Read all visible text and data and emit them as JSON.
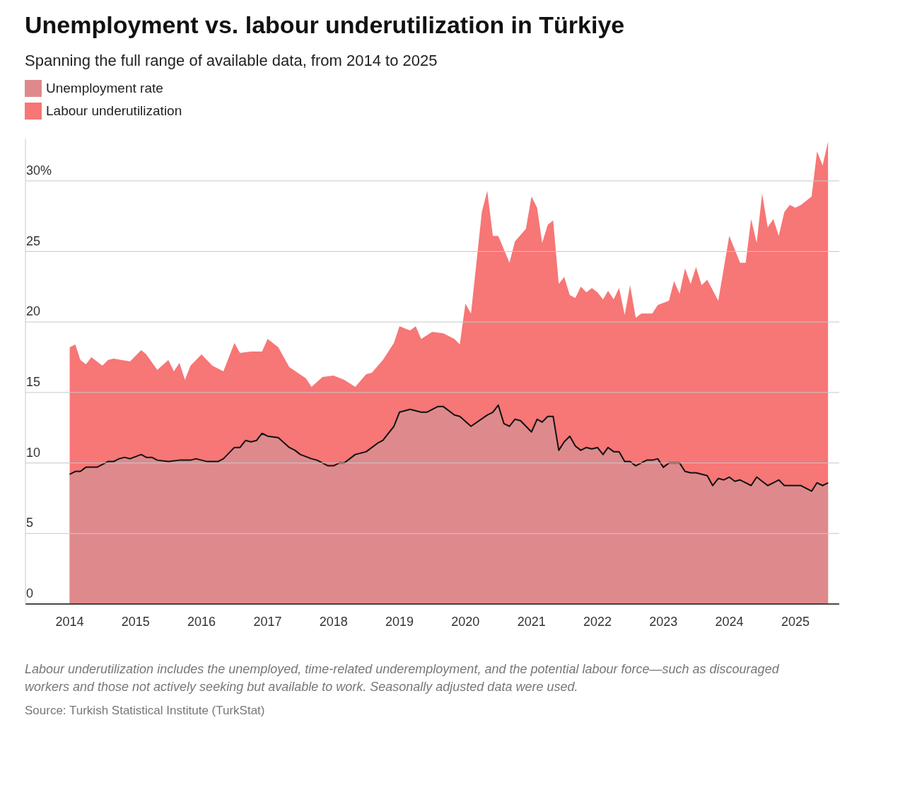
{
  "chart_data": {
    "type": "area",
    "title": "Unemployment vs. labour underutilization in Türkiye",
    "subtitle": "Spanning the full range of available data, from 2014 to 2025",
    "annotations": [
      "Labour underutilization includes the unemployed, time-related underemployment, and the potential labour force—such as discouraged workers and those not actively seeking but available to work. Seasonally adjusted data were used.",
      "Source: Turkish Statistical Institute (TurkStat)"
    ],
    "legend": "top left",
    "grid": "y",
    "xlim": [
      "2013-05",
      "2025-09"
    ],
    "xticks": [
      "2014",
      "2015",
      "2016",
      "2017",
      "2018",
      "2019",
      "2020",
      "2021",
      "2022",
      "2023",
      "2024",
      "2025"
    ],
    "ylim": [
      0,
      33
    ],
    "yticks": [
      0,
      5,
      10,
      15,
      20,
      25,
      {
        "value": 30,
        "label": "30%"
      }
    ],
    "series": [
      {
        "name": "Unemployment rate",
        "color": "#de8a8c",
        "x": [
          "2014-01",
          "2014-02",
          "2014-03",
          "2014-04",
          "2014-06",
          "2014-08",
          "2014-09",
          "2014-10",
          "2014-11",
          "2014-12",
          "2015-02",
          "2015-03",
          "2015-04",
          "2015-05",
          "2015-07",
          "2015-09",
          "2015-11",
          "2015-12",
          "2016-02",
          "2016-03",
          "2016-04",
          "2016-05",
          "2016-07",
          "2016-08",
          "2016-09",
          "2016-10",
          "2016-11",
          "2016-12",
          "2017-01",
          "2017-03",
          "2017-05",
          "2017-06",
          "2017-07",
          "2017-09",
          "2017-10",
          "2017-11",
          "2017-12",
          "2018-01",
          "2018-02",
          "2018-03",
          "2018-05",
          "2018-07",
          "2018-09",
          "2018-10",
          "2018-12",
          "2019-01",
          "2019-03",
          "2019-05",
          "2019-06",
          "2019-08",
          "2019-09",
          "2019-11",
          "2019-12",
          "2020-02",
          "2020-05",
          "2020-06",
          "2020-07",
          "2020-08",
          "2020-09",
          "2020-10",
          "2020-11",
          "2021-01",
          "2021-02",
          "2021-03",
          "2021-04",
          "2021-05",
          "2021-06",
          "2021-07",
          "2021-08",
          "2021-09",
          "2021-10",
          "2021-11",
          "2021-12",
          "2022-01",
          "2022-02",
          "2022-03",
          "2022-04",
          "2022-05",
          "2022-06",
          "2022-07",
          "2022-08",
          "2022-10",
          "2022-11",
          "2022-12",
          "2023-01",
          "2023-02",
          "2023-04",
          "2023-05",
          "2023-06",
          "2023-07",
          "2023-09",
          "2023-10",
          "2023-11",
          "2023-12",
          "2024-01",
          "2024-02",
          "2024-03",
          "2024-04",
          "2024-05",
          "2024-06",
          "2024-07",
          "2024-08",
          "2024-09",
          "2024-10",
          "2024-11",
          "2025-02",
          "2025-04",
          "2025-05",
          "2025-06",
          "2025-07"
        ],
        "values": [
          9.2,
          9.4,
          9.4,
          9.7,
          9.7,
          10.1,
          10.1,
          10.3,
          10.4,
          10.3,
          10.6,
          10.4,
          10.4,
          10.2,
          10.1,
          10.2,
          10.2,
          10.3,
          10.1,
          10.1,
          10.1,
          10.3,
          11.1,
          11.1,
          11.6,
          11.5,
          11.6,
          12.1,
          11.9,
          11.8,
          11.1,
          10.9,
          10.6,
          10.3,
          10.2,
          10.0,
          9.8,
          9.8,
          10.0,
          10.0,
          10.6,
          10.8,
          11.4,
          11.6,
          12.6,
          13.6,
          13.8,
          13.6,
          13.6,
          14.0,
          14.0,
          13.4,
          13.3,
          12.6,
          13.4,
          13.6,
          14.1,
          12.8,
          12.6,
          13.1,
          13.0,
          12.2,
          13.1,
          12.9,
          13.3,
          13.3,
          10.9,
          11.5,
          11.9,
          11.2,
          10.9,
          11.1,
          11.0,
          11.1,
          10.6,
          11.1,
          10.8,
          10.8,
          10.1,
          10.1,
          9.8,
          10.2,
          10.2,
          10.3,
          9.7,
          10.0,
          10.0,
          9.4,
          9.3,
          9.3,
          9.1,
          8.4,
          8.9,
          8.8,
          9.0,
          8.7,
          8.8,
          8.6,
          8.4,
          9.0,
          8.7,
          8.4,
          8.6,
          8.8,
          8.4,
          8.4,
          8.0,
          8.6,
          8.4,
          8.6
        ]
      },
      {
        "name": "Labour underutilization",
        "color": "#f77676",
        "x": [
          "2014-01",
          "2014-02",
          "2014-03",
          "2014-04",
          "2014-05",
          "2014-07",
          "2014-08",
          "2014-09",
          "2014-12",
          "2015-02",
          "2015-03",
          "2015-05",
          "2015-07",
          "2015-08",
          "2015-09",
          "2015-10",
          "2015-11",
          "2016-01",
          "2016-03",
          "2016-05",
          "2016-07",
          "2016-08",
          "2016-10",
          "2016-12",
          "2017-01",
          "2017-03",
          "2017-05",
          "2017-08",
          "2017-09",
          "2017-11",
          "2018-01",
          "2018-03",
          "2018-05",
          "2018-07",
          "2018-08",
          "2018-10",
          "2018-12",
          "2019-01",
          "2019-03",
          "2019-04",
          "2019-05",
          "2019-07",
          "2019-09",
          "2019-11",
          "2019-12",
          "2020-01",
          "2020-02",
          "2020-04",
          "2020-05",
          "2020-06",
          "2020-07",
          "2020-09",
          "2020-10",
          "2020-12",
          "2021-01",
          "2021-02",
          "2021-03",
          "2021-04",
          "2021-05",
          "2021-06",
          "2021-07",
          "2021-08",
          "2021-09",
          "2021-10",
          "2021-11",
          "2021-12",
          "2022-01",
          "2022-02",
          "2022-03",
          "2022-04",
          "2022-05",
          "2022-06",
          "2022-07",
          "2022-08",
          "2022-09",
          "2022-11",
          "2022-12",
          "2023-02",
          "2023-03",
          "2023-04",
          "2023-05",
          "2023-06",
          "2023-07",
          "2023-08",
          "2023-09",
          "2023-11",
          "2024-01",
          "2024-03",
          "2024-04",
          "2024-05",
          "2024-06",
          "2024-07",
          "2024-08",
          "2024-09",
          "2024-10",
          "2024-11",
          "2024-12",
          "2025-01",
          "2025-02",
          "2025-04",
          "2025-05",
          "2025-06",
          "2025-07"
        ],
        "values": [
          18.2,
          18.4,
          17.3,
          17.0,
          17.5,
          16.9,
          17.3,
          17.4,
          17.2,
          18.0,
          17.7,
          16.6,
          17.3,
          16.5,
          17.1,
          15.9,
          16.9,
          17.7,
          16.9,
          16.5,
          18.5,
          17.8,
          17.9,
          17.9,
          18.8,
          18.2,
          16.8,
          16.0,
          15.4,
          16.1,
          16.2,
          15.9,
          15.4,
          16.3,
          16.4,
          17.3,
          18.5,
          19.7,
          19.4,
          19.7,
          18.8,
          19.3,
          19.2,
          18.8,
          18.4,
          21.3,
          20.6,
          27.8,
          29.3,
          26.1,
          26.1,
          24.2,
          25.7,
          26.6,
          28.9,
          28.1,
          25.6,
          26.9,
          27.2,
          22.7,
          23.2,
          21.9,
          21.7,
          22.5,
          22.1,
          22.4,
          22.1,
          21.6,
          22.2,
          21.6,
          22.4,
          20.5,
          22.6,
          20.3,
          20.6,
          20.6,
          21.2,
          21.5,
          22.9,
          22.0,
          23.8,
          22.7,
          23.9,
          22.6,
          23.0,
          21.5,
          26.1,
          24.2,
          24.2,
          27.3,
          25.6,
          29.1,
          26.7,
          27.3,
          26.1,
          27.8,
          28.3,
          28.1,
          28.3,
          28.9,
          32.1,
          31.1,
          32.8
        ]
      }
    ]
  }
}
